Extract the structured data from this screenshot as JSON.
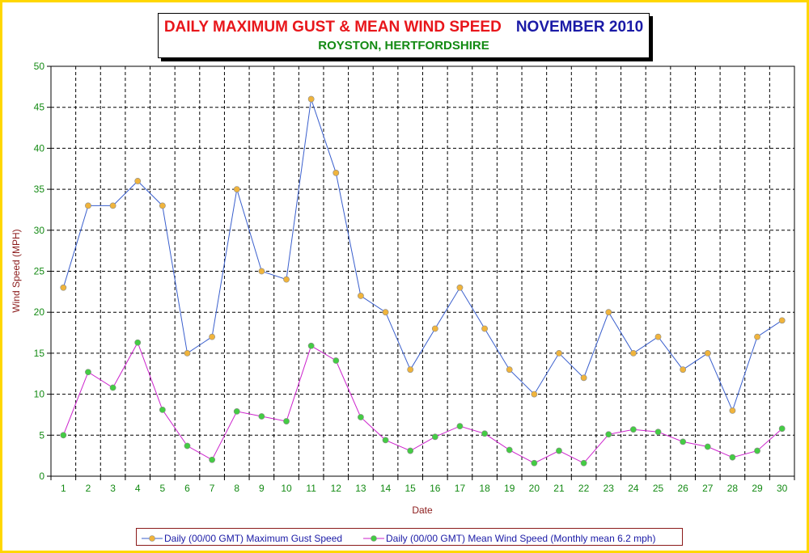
{
  "chart_data": {
    "type": "line",
    "title_main": "DAILY MAXIMUM GUST & MEAN WIND SPEED",
    "title_month": "NOVEMBER 2010",
    "subtitle": "ROYSTON, HERTFORDSHIRE",
    "xlabel": "Date",
    "ylabel": "Wind Speed (MPH)",
    "ylim": [
      0,
      50
    ],
    "yticks": [
      "0",
      "5",
      "10",
      "15",
      "20",
      "25",
      "30",
      "35",
      "40",
      "45",
      "50"
    ],
    "categories": [
      "1",
      "2",
      "3",
      "4",
      "5",
      "6",
      "7",
      "8",
      "9",
      "10",
      "11",
      "12",
      "13",
      "14",
      "15",
      "16",
      "17",
      "18",
      "19",
      "20",
      "21",
      "22",
      "23",
      "24",
      "25",
      "26",
      "27",
      "28",
      "29",
      "30"
    ],
    "grid": true,
    "legend_position": "bottom",
    "series": [
      {
        "name": "Daily (00/00 GMT) Maximum Gust Speed",
        "line_color": "#3a5fcd",
        "marker_color": "#f0b43c",
        "values": [
          23,
          33,
          33,
          36,
          33,
          15,
          17,
          35,
          25,
          24,
          46,
          37,
          22,
          20,
          13,
          18,
          23,
          18,
          13,
          10,
          15,
          12,
          20,
          15,
          17,
          13,
          15,
          8,
          17,
          19
        ]
      },
      {
        "name": "Daily (00/00 GMT) Mean Wind Speed (Monthly mean 6.2 mph)",
        "line_color": "#cc22cc",
        "marker_color": "#44cc44",
        "values": [
          5.0,
          12.7,
          10.8,
          16.3,
          8.1,
          3.7,
          2.0,
          7.9,
          7.3,
          6.7,
          15.9,
          14.1,
          7.2,
          4.4,
          3.1,
          4.8,
          6.1,
          5.2,
          3.2,
          1.6,
          3.1,
          1.6,
          5.1,
          5.7,
          5.4,
          4.2,
          3.6,
          2.3,
          3.1,
          5.8
        ]
      }
    ]
  },
  "colors": {
    "frame_border": "#ffd700",
    "title_red": "#e8161b",
    "title_blue": "#1a1aa6",
    "subtitle_green": "#138a13",
    "tick_green": "#138a13",
    "axis_title": "#8b1a1a"
  }
}
